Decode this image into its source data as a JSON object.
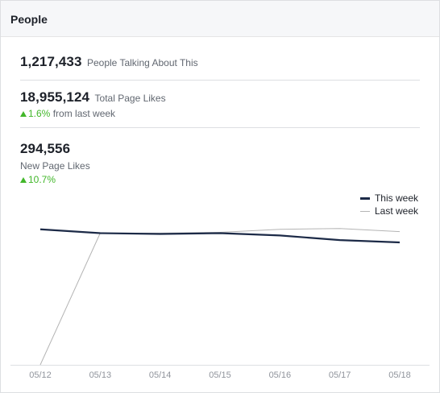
{
  "header": {
    "title": "People"
  },
  "stats": {
    "talking": {
      "value": "1,217,433",
      "label": "People Talking About This"
    },
    "total_likes": {
      "value": "18,955,124",
      "label": "Total Page Likes",
      "change_pct": "1.6%",
      "change_text": " from last week"
    },
    "new_likes": {
      "value": "294,556",
      "label": "New Page Likes",
      "change_pct": "10.7%"
    }
  },
  "colors": {
    "this_week": "#1c2a47",
    "last_week": "#b4b4b4",
    "positive": "#42b72a"
  },
  "chart_data": {
    "type": "line",
    "categories": [
      "05/12",
      "05/13",
      "05/14",
      "05/15",
      "05/16",
      "05/17",
      "05/18"
    ],
    "series": [
      {
        "name": "This week",
        "values": [
          284000,
          279000,
          278000,
          279000,
          276000,
          270000,
          267000
        ]
      },
      {
        "name": "Last week",
        "values": [
          108000,
          279000,
          279000,
          280000,
          284000,
          285000,
          281000
        ]
      }
    ],
    "ylim": [
      108000,
      290000
    ],
    "legend": "top-right",
    "grid": false
  }
}
